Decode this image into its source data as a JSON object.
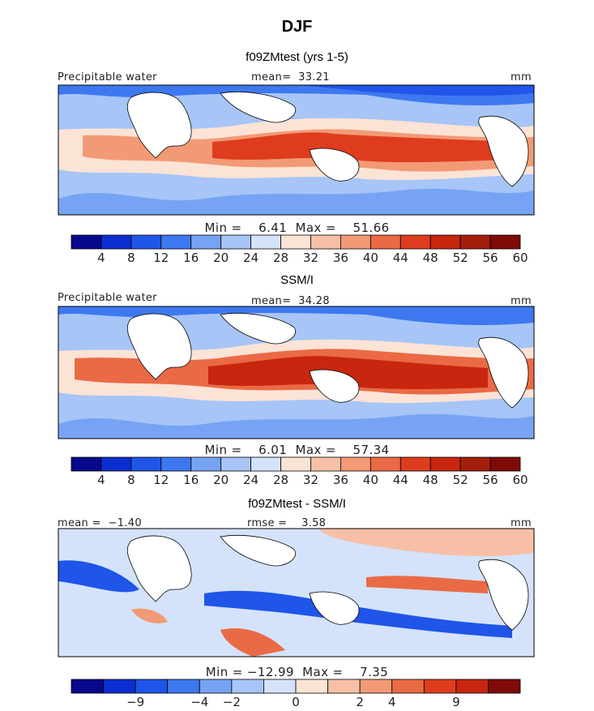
{
  "figure": {
    "title": "DJF"
  },
  "palette_pos": [
    "#08088c",
    "#0a2ed0",
    "#1f55e8",
    "#3d78f0",
    "#77a3f4",
    "#a7c5f6",
    "#d4e3fb",
    "#fbe3d6",
    "#f7c0a6",
    "#f29a76",
    "#ea6a45",
    "#df3c1e",
    "#c8260f",
    "#a51e0c",
    "#7f0a06"
  ],
  "palette_diff": [
    "#08088c",
    "#0a2ed0",
    "#1f55e8",
    "#3d78f0",
    "#77a3f4",
    "#a7c5f6",
    "#d4e3fb",
    "#fbe3d6",
    "#f7c0a6",
    "#f29a76",
    "#ea6a45",
    "#df3c1e",
    "#c8260f",
    "#7f0a06"
  ],
  "panels": [
    {
      "title": "f09ZMtest (yrs 1-5)",
      "left_label": "Precipitable water",
      "mean_label": "mean=  33.21",
      "units": "mm",
      "stats": "Min =    6.41  Max =    51.66",
      "colorbar_ticks": [
        "4",
        "8",
        "12",
        "16",
        "20",
        "24",
        "28",
        "32",
        "36",
        "40",
        "44",
        "48",
        "52",
        "56",
        "60"
      ]
    },
    {
      "title": "SSM/I",
      "left_label": "Precipitable water",
      "mean_label": "mean=  34.28",
      "units": "mm",
      "stats": "Min =    6.01  Max =    57.34",
      "colorbar_ticks": [
        "4",
        "8",
        "12",
        "16",
        "20",
        "24",
        "28",
        "32",
        "36",
        "40",
        "44",
        "48",
        "52",
        "56",
        "60"
      ]
    },
    {
      "title": "f09ZMtest - SSM/I",
      "left_label": "mean =  −1.40",
      "mean_label": "rmse =    3.58",
      "units": "mm",
      "stats": "Min = −12.99  Max =    7.35",
      "colorbar_ticks": [
        "−9",
        "−4",
        "−2",
        "0",
        "2",
        "4",
        "9"
      ]
    }
  ],
  "chart_data": [
    {
      "type": "heatmap",
      "title": "f09ZMtest (yrs 1-5)",
      "variable": "Precipitable water",
      "units": "mm",
      "mean": 33.21,
      "min": 6.41,
      "max": 51.66,
      "colorbar_levels": [
        4,
        8,
        12,
        16,
        20,
        24,
        28,
        32,
        36,
        40,
        44,
        48,
        52,
        56,
        60
      ]
    },
    {
      "type": "heatmap",
      "title": "SSM/I",
      "variable": "Precipitable water",
      "units": "mm",
      "mean": 34.28,
      "min": 6.01,
      "max": 57.34,
      "colorbar_levels": [
        4,
        8,
        12,
        16,
        20,
        24,
        28,
        32,
        36,
        40,
        44,
        48,
        52,
        56,
        60
      ]
    },
    {
      "type": "heatmap",
      "title": "f09ZMtest - SSM/I",
      "units": "mm",
      "mean": -1.4,
      "rmse": 3.58,
      "min": -12.99,
      "max": 7.35,
      "colorbar_levels": [
        -9,
        -4,
        -2,
        0,
        2,
        4,
        9
      ]
    }
  ]
}
